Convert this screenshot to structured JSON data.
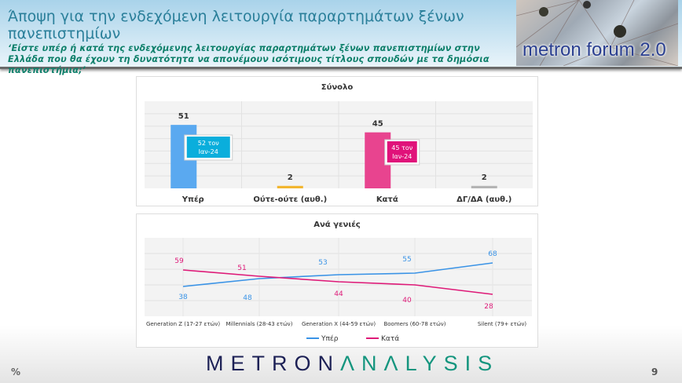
{
  "header": {
    "title": "Άποψη για την ενδεχόμενη λειτουργία παραρτημάτων ξένων πανεπιστημίων",
    "subtitle": "‘Είστε υπέρ ή κατά της ενδεχόμενης λειτουργίας παραρτημάτων ξένων πανεπιστημίων στην Ελλάδα που θα έχουν τη δυνατότητα να απονέμουν ισότιμους τίτλους σπουδών με τα δημόσια πανεπιστήμια;’",
    "forum_logo": "metron forum 2.0"
  },
  "footer": {
    "unit": "%",
    "page": "9",
    "logo_a": "METRON",
    "logo_b": "ΛNΛLYSIS"
  },
  "colors": {
    "yper": "#5aa9f0",
    "kata": "#e8448f",
    "neutral": "#f2b630",
    "dk": "#b4b4b4",
    "callout_yper": "#0aaedc",
    "callout_kata": "#e0127a",
    "line_yper": "#3a93e6",
    "line_kata": "#de1a78"
  },
  "chart_data": [
    {
      "type": "bar",
      "title": "Σύνολο",
      "categories": [
        "Υπέρ",
        "Ούτε-ούτε (αυθ.)",
        "Κατά",
        "ΔΓ/ΔΑ (αυθ.)"
      ],
      "values": [
        51,
        2,
        45,
        2
      ],
      "value_labels": [
        "51",
        "2",
        "45",
        "2"
      ],
      "annotations": [
        {
          "category": "Υπέρ",
          "line1": "52 τον",
          "line2": "Ιαν-24"
        },
        {
          "category": "Κατά",
          "line1": "45 τον",
          "line2": "Ιαν-24"
        }
      ],
      "ylim": [
        0,
        70
      ],
      "grid": true
    },
    {
      "type": "line",
      "title": "Ανά γενιές",
      "categories": [
        "Generation Z (17-27 ετών)",
        "Millennials (28-43 ετών)",
        "Generation X (44-59 ετών)",
        "Boomers (60-78 ετών)",
        "Silent (79+ ετών)"
      ],
      "series": [
        {
          "name": "Υπέρ",
          "values": [
            38,
            48,
            53,
            55,
            68
          ],
          "labels": [
            "38",
            "48",
            "53",
            "55",
            "68"
          ]
        },
        {
          "name": "Κατά",
          "values": [
            59,
            51,
            44,
            40,
            28
          ],
          "labels": [
            "59",
            "51",
            "44",
            "40",
            "28"
          ]
        }
      ],
      "ylim": [
        0,
        100
      ],
      "grid": true,
      "legend": "bottom"
    }
  ]
}
